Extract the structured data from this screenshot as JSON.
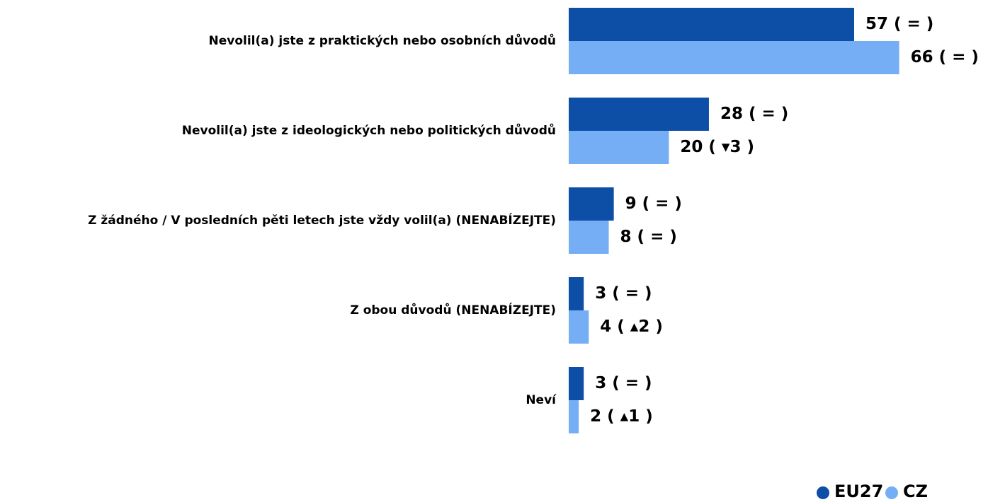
{
  "chart_data": {
    "type": "bar",
    "orientation": "horizontal",
    "categories": [
      "Nevolil(a) jste z praktických nebo osobních důvodů",
      "Nevolil(a) jste z ideologických nebo politických důvodů",
      "Z žádného / V posledních pěti letech jste vždy volil(a) (NENABÍZEJTE)",
      "Z obou důvodů (NENABÍZEJTE)",
      "Neví"
    ],
    "series": [
      {
        "name": "EU27",
        "color": "#0d4ea6",
        "values": [
          57,
          28,
          9,
          3,
          3
        ],
        "value_labels": [
          "57 ( = )",
          "28 ( = )",
          "9 ( = )",
          "3 ( = )",
          "3 ( = )"
        ]
      },
      {
        "name": "CZ",
        "color": "#76aef5",
        "values": [
          66,
          20,
          8,
          4,
          2
        ],
        "value_labels": [
          "66 ( = )",
          "20 ( ▾3 )",
          "8 ( = )",
          "4 ( ▴2 )",
          "2 ( ▴1 )"
        ]
      }
    ],
    "legend": "bottom-right"
  }
}
